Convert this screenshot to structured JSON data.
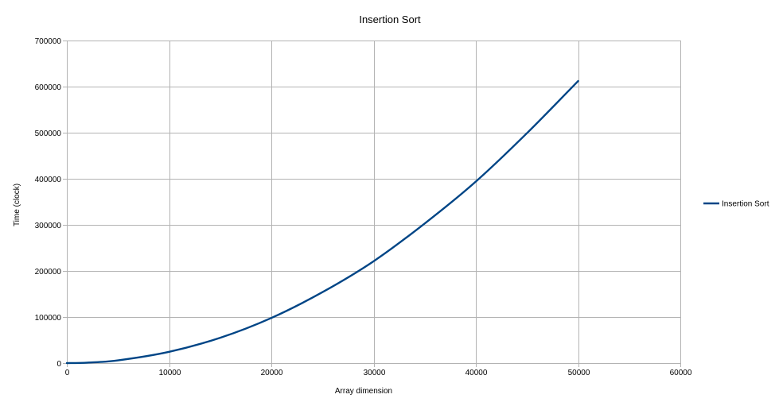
{
  "chart_data": {
    "type": "line",
    "title": "Insertion Sort",
    "xlabel": "Array dimension",
    "ylabel": "Time (clock)",
    "xlim": [
      0,
      60000
    ],
    "ylim": [
      0,
      700000
    ],
    "x_ticks": [
      0,
      10000,
      20000,
      30000,
      40000,
      50000,
      60000
    ],
    "y_ticks": [
      0,
      100000,
      200000,
      300000,
      400000,
      500000,
      600000,
      700000
    ],
    "x_tick_labels": [
      "0",
      "10000",
      "20000",
      "30000",
      "40000",
      "50000",
      "60000"
    ],
    "y_tick_labels": [
      "0",
      "100000",
      "200000",
      "300000",
      "400000",
      "500000",
      "600000",
      "700000"
    ],
    "grid": true,
    "legend_position": "right",
    "series": [
      {
        "name": "Insertion Sort",
        "color": "#004586",
        "x": [
          0,
          2000,
          5000,
          10000,
          15000,
          20000,
          25000,
          30000,
          35000,
          40000,
          45000,
          50000
        ],
        "y": [
          0,
          1000,
          6000,
          24500,
          55000,
          98000,
          154000,
          221000,
          303000,
          394000,
          499000,
          612000
        ]
      }
    ]
  }
}
